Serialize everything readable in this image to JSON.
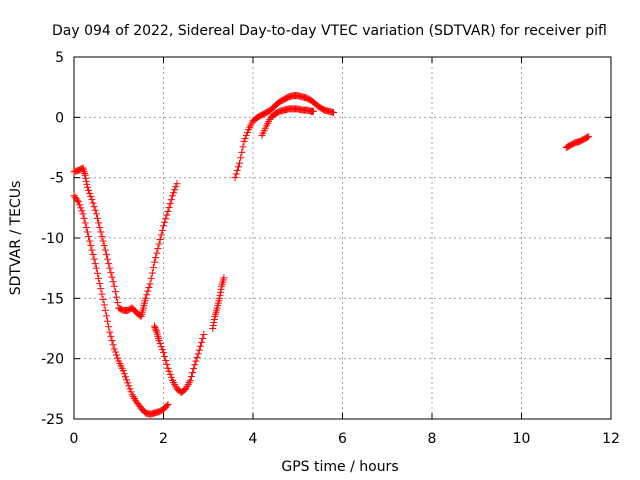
{
  "chart_data": {
    "type": "scatter",
    "title": "Day 094 of 2022, Sidereal Day-to-day VTEC variation (SDTVAR) for receiver pifl",
    "xlabel": "GPS time / hours",
    "ylabel": "SDTVAR / TECUs",
    "xlim": [
      0,
      12
    ],
    "ylim": [
      -25,
      5
    ],
    "xticks": [
      0,
      2,
      4,
      6,
      8,
      10,
      12
    ],
    "yticks": [
      -25,
      -20,
      -15,
      -10,
      -5,
      0,
      5
    ],
    "xtick_labels": [
      "0",
      "2",
      "4",
      "6",
      "8",
      "10",
      "12"
    ],
    "ytick_labels": [
      "-25",
      "-20",
      "-15",
      "-10",
      "-5",
      "0",
      "5"
    ],
    "grid": true,
    "marker": "plus",
    "color": "#ff0000",
    "series": [
      {
        "points": [
          [
            0.0,
            -4.5
          ],
          [
            0.1,
            -4.4
          ],
          [
            0.2,
            -4.2
          ],
          [
            0.25,
            -4.8
          ],
          [
            0.3,
            -5.8
          ],
          [
            0.4,
            -6.8
          ],
          [
            0.5,
            -8.0
          ],
          [
            0.6,
            -9.5
          ],
          [
            0.7,
            -11.0
          ],
          [
            0.8,
            -12.5
          ],
          [
            0.9,
            -14.0
          ],
          [
            1.0,
            -15.8
          ],
          [
            1.1,
            -16.0
          ],
          [
            1.2,
            -16.0
          ],
          [
            1.3,
            -15.8
          ],
          [
            1.4,
            -16.2
          ],
          [
            1.5,
            -16.5
          ],
          [
            1.55,
            -15.8
          ],
          [
            1.6,
            -15.0
          ],
          [
            1.7,
            -13.8
          ],
          [
            1.8,
            -12.0
          ],
          [
            1.9,
            -10.5
          ],
          [
            2.0,
            -9.0
          ],
          [
            2.1,
            -7.8
          ],
          [
            2.2,
            -6.5
          ],
          [
            2.3,
            -5.5
          ]
        ]
      },
      {
        "points": [
          [
            0.0,
            -6.5
          ],
          [
            0.1,
            -7.0
          ],
          [
            0.2,
            -8.0
          ],
          [
            0.3,
            -9.5
          ],
          [
            0.4,
            -11.0
          ],
          [
            0.5,
            -12.5
          ],
          [
            0.6,
            -14.2
          ],
          [
            0.7,
            -16.0
          ],
          [
            0.8,
            -17.8
          ],
          [
            0.9,
            -19.2
          ],
          [
            1.0,
            -20.2
          ],
          [
            1.1,
            -21.0
          ],
          [
            1.2,
            -22.0
          ],
          [
            1.3,
            -23.0
          ],
          [
            1.4,
            -23.6
          ],
          [
            1.5,
            -24.1
          ],
          [
            1.6,
            -24.5
          ],
          [
            1.7,
            -24.6
          ],
          [
            1.8,
            -24.5
          ],
          [
            1.9,
            -24.4
          ],
          [
            2.0,
            -24.2
          ],
          [
            2.1,
            -23.8
          ]
        ]
      },
      {
        "points": [
          [
            1.8,
            -17.3
          ],
          [
            1.85,
            -17.8
          ],
          [
            1.9,
            -18.5
          ],
          [
            2.0,
            -19.5
          ],
          [
            2.1,
            -20.8
          ],
          [
            2.2,
            -21.8
          ],
          [
            2.3,
            -22.5
          ],
          [
            2.4,
            -22.8
          ],
          [
            2.5,
            -22.5
          ],
          [
            2.6,
            -21.8
          ],
          [
            2.7,
            -20.5
          ],
          [
            2.8,
            -19.3
          ],
          [
            2.9,
            -18.0
          ]
        ]
      },
      {
        "points": [
          [
            3.1,
            -17.5
          ],
          [
            3.15,
            -16.5
          ],
          [
            3.2,
            -15.8
          ],
          [
            3.25,
            -15.0
          ],
          [
            3.3,
            -14.0
          ],
          [
            3.35,
            -13.3
          ]
        ]
      },
      {
        "points": [
          [
            3.6,
            -5.0
          ],
          [
            3.7,
            -3.8
          ],
          [
            3.8,
            -2.0
          ],
          [
            3.9,
            -1.0
          ],
          [
            4.0,
            -0.3
          ],
          [
            4.1,
            0.0
          ],
          [
            4.2,
            0.2
          ],
          [
            4.3,
            0.4
          ],
          [
            4.4,
            0.6
          ],
          [
            4.5,
            1.0
          ],
          [
            4.6,
            1.3
          ],
          [
            4.7,
            1.5
          ],
          [
            4.8,
            1.7
          ],
          [
            4.9,
            1.8
          ],
          [
            5.0,
            1.8
          ],
          [
            5.1,
            1.7
          ],
          [
            5.2,
            1.6
          ],
          [
            5.3,
            1.4
          ],
          [
            5.4,
            1.1
          ],
          [
            5.5,
            0.8
          ],
          [
            5.6,
            0.6
          ],
          [
            5.7,
            0.5
          ],
          [
            5.8,
            0.4
          ]
        ]
      },
      {
        "points": [
          [
            4.2,
            -1.5
          ],
          [
            4.3,
            -0.7
          ],
          [
            4.4,
            0.0
          ],
          [
            4.5,
            0.3
          ],
          [
            4.6,
            0.5
          ],
          [
            4.7,
            0.6
          ],
          [
            4.8,
            0.7
          ],
          [
            4.9,
            0.7
          ],
          [
            5.0,
            0.7
          ],
          [
            5.1,
            0.6
          ],
          [
            5.2,
            0.6
          ],
          [
            5.3,
            0.5
          ],
          [
            5.35,
            0.5
          ]
        ]
      },
      {
        "points": [
          [
            11.0,
            -2.5
          ],
          [
            11.1,
            -2.3
          ],
          [
            11.2,
            -2.1
          ],
          [
            11.3,
            -2.0
          ],
          [
            11.4,
            -1.8
          ],
          [
            11.5,
            -1.6
          ]
        ]
      }
    ]
  }
}
